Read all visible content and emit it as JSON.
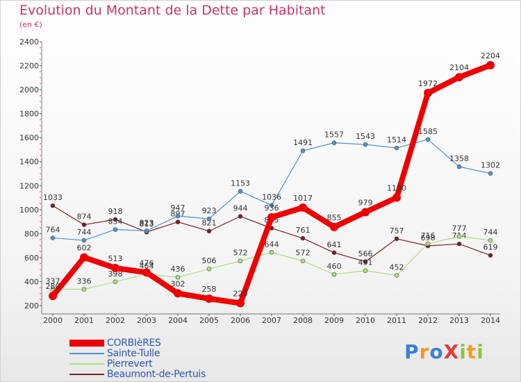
{
  "header": {
    "title": "Evolution du Montant de la Dette par Habitant",
    "subtitle": "(en €)"
  },
  "logo": {
    "text": "ProXiti",
    "letters": [
      {
        "ch": "P",
        "color": "#3a7fd5"
      },
      {
        "ch": "r",
        "color": "#f39a1e"
      },
      {
        "ch": "o",
        "color": "#3a7fd5"
      },
      {
        "ch": "X",
        "color": "#e23b3b"
      },
      {
        "ch": "i",
        "color": "#8cc63f"
      },
      {
        "ch": "t",
        "color": "#f39a1e"
      },
      {
        "ch": "i",
        "color": "#8cc63f"
      }
    ]
  },
  "chart_data": {
    "type": "line",
    "title": "Evolution du Montant de la Dette par Habitant",
    "subtitle": "(en €)",
    "x": [
      "2000",
      "2001",
      "2002",
      "2003",
      "2004",
      "2005",
      "2006",
      "2007",
      "2008",
      "2009",
      "2010",
      "2011",
      "2012",
      "2013",
      "2014"
    ],
    "ylim": [
      200,
      2400
    ],
    "yticks": [
      200,
      400,
      600,
      800,
      1000,
      1200,
      1400,
      1600,
      1800,
      2000,
      2200,
      2400
    ],
    "grid": false,
    "legend_position": "bottom-left",
    "series": [
      {
        "name": "Beaumont-de-Pertuis",
        "color": "#7a1f23",
        "width": 1.2,
        "values": [
          1033,
          874,
          918,
          813,
          897,
          821,
          944,
          845,
          761,
          641,
          566,
          757,
          698,
          714,
          619
        ]
      },
      {
        "name": "Pierrevert",
        "color": "#a9e07d",
        "width": 1.2,
        "values": [
          337,
          336,
          398,
          464,
          436,
          506,
          572,
          644,
          572,
          460,
          491,
          452,
          716,
          777,
          744
        ]
      },
      {
        "name": "Sainte-Tulle",
        "color": "#4b93cf",
        "width": 1.2,
        "values": [
          764,
          744,
          834,
          823,
          947,
          923,
          1153,
          1036,
          1491,
          1557,
          1543,
          1514,
          1585,
          1358,
          1302
        ]
      },
      {
        "name": "CORBIèRES",
        "color": "#ee0000",
        "width": 8,
        "values": [
          280,
          602,
          513,
          476,
          302,
          258,
          220,
          936,
          1017,
          855,
          979,
          1100,
          1972,
          2104,
          2204
        ]
      }
    ],
    "legend_order": [
      "CORBIèRES",
      "Sainte-Tulle",
      "Pierrevert",
      "Beaumont-de-Pertuis"
    ]
  }
}
